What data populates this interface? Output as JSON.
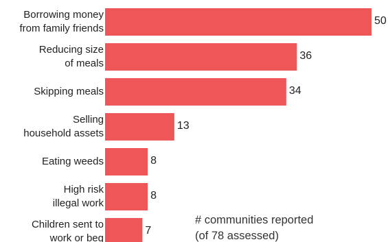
{
  "chart_data": {
    "type": "bar",
    "orientation": "horizontal",
    "categories": [
      [
        "Borrowing money",
        "from family friends"
      ],
      [
        "Reducing size",
        "of meals"
      ],
      [
        "Skipping meals"
      ],
      [
        "Selling",
        "household assets"
      ],
      [
        "Eating weeds"
      ],
      [
        "High risk",
        "illegal work"
      ],
      [
        "Children sent to",
        "work or beg"
      ]
    ],
    "values": [
      50,
      36,
      34,
      13,
      8,
      8,
      7
    ],
    "title": "",
    "xlabel": "",
    "ylabel": "",
    "xlim": [
      0,
      50
    ],
    "grid": false,
    "colors": {
      "bar": "#ef5657"
    }
  },
  "annotation": {
    "lines": [
      "# communities reported",
      "(of 78 assessed)"
    ]
  }
}
